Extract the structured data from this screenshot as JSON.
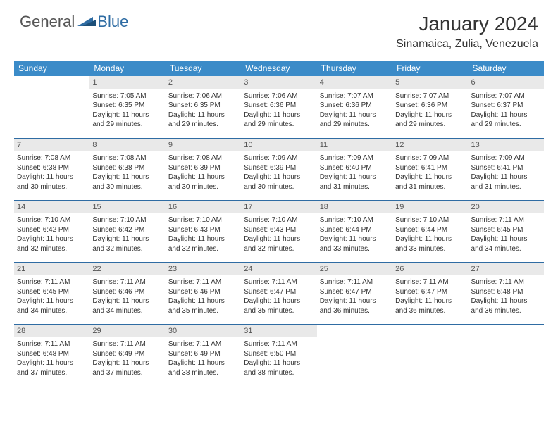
{
  "brand": {
    "general": "General",
    "blue": "Blue"
  },
  "title": "January 2024",
  "location": "Sinamaica, Zulia, Venezuela",
  "colors": {
    "header_bg": "#3b8bc8",
    "header_text": "#ffffff",
    "daynum_bg": "#e9e9e9",
    "row_border": "#2f6ca3",
    "logo_blue": "#2f6ca3",
    "body_text": "#333333"
  },
  "weekdays": [
    "Sunday",
    "Monday",
    "Tuesday",
    "Wednesday",
    "Thursday",
    "Friday",
    "Saturday"
  ],
  "weeks": [
    [
      null,
      {
        "n": "1",
        "sr": "Sunrise: 7:05 AM",
        "ss": "Sunset: 6:35 PM",
        "d1": "Daylight: 11 hours",
        "d2": "and 29 minutes."
      },
      {
        "n": "2",
        "sr": "Sunrise: 7:06 AM",
        "ss": "Sunset: 6:35 PM",
        "d1": "Daylight: 11 hours",
        "d2": "and 29 minutes."
      },
      {
        "n": "3",
        "sr": "Sunrise: 7:06 AM",
        "ss": "Sunset: 6:36 PM",
        "d1": "Daylight: 11 hours",
        "d2": "and 29 minutes."
      },
      {
        "n": "4",
        "sr": "Sunrise: 7:07 AM",
        "ss": "Sunset: 6:36 PM",
        "d1": "Daylight: 11 hours",
        "d2": "and 29 minutes."
      },
      {
        "n": "5",
        "sr": "Sunrise: 7:07 AM",
        "ss": "Sunset: 6:36 PM",
        "d1": "Daylight: 11 hours",
        "d2": "and 29 minutes."
      },
      {
        "n": "6",
        "sr": "Sunrise: 7:07 AM",
        "ss": "Sunset: 6:37 PM",
        "d1": "Daylight: 11 hours",
        "d2": "and 29 minutes."
      }
    ],
    [
      {
        "n": "7",
        "sr": "Sunrise: 7:08 AM",
        "ss": "Sunset: 6:38 PM",
        "d1": "Daylight: 11 hours",
        "d2": "and 30 minutes."
      },
      {
        "n": "8",
        "sr": "Sunrise: 7:08 AM",
        "ss": "Sunset: 6:38 PM",
        "d1": "Daylight: 11 hours",
        "d2": "and 30 minutes."
      },
      {
        "n": "9",
        "sr": "Sunrise: 7:08 AM",
        "ss": "Sunset: 6:39 PM",
        "d1": "Daylight: 11 hours",
        "d2": "and 30 minutes."
      },
      {
        "n": "10",
        "sr": "Sunrise: 7:09 AM",
        "ss": "Sunset: 6:39 PM",
        "d1": "Daylight: 11 hours",
        "d2": "and 30 minutes."
      },
      {
        "n": "11",
        "sr": "Sunrise: 7:09 AM",
        "ss": "Sunset: 6:40 PM",
        "d1": "Daylight: 11 hours",
        "d2": "and 31 minutes."
      },
      {
        "n": "12",
        "sr": "Sunrise: 7:09 AM",
        "ss": "Sunset: 6:41 PM",
        "d1": "Daylight: 11 hours",
        "d2": "and 31 minutes."
      },
      {
        "n": "13",
        "sr": "Sunrise: 7:09 AM",
        "ss": "Sunset: 6:41 PM",
        "d1": "Daylight: 11 hours",
        "d2": "and 31 minutes."
      }
    ],
    [
      {
        "n": "14",
        "sr": "Sunrise: 7:10 AM",
        "ss": "Sunset: 6:42 PM",
        "d1": "Daylight: 11 hours",
        "d2": "and 32 minutes."
      },
      {
        "n": "15",
        "sr": "Sunrise: 7:10 AM",
        "ss": "Sunset: 6:42 PM",
        "d1": "Daylight: 11 hours",
        "d2": "and 32 minutes."
      },
      {
        "n": "16",
        "sr": "Sunrise: 7:10 AM",
        "ss": "Sunset: 6:43 PM",
        "d1": "Daylight: 11 hours",
        "d2": "and 32 minutes."
      },
      {
        "n": "17",
        "sr": "Sunrise: 7:10 AM",
        "ss": "Sunset: 6:43 PM",
        "d1": "Daylight: 11 hours",
        "d2": "and 32 minutes."
      },
      {
        "n": "18",
        "sr": "Sunrise: 7:10 AM",
        "ss": "Sunset: 6:44 PM",
        "d1": "Daylight: 11 hours",
        "d2": "and 33 minutes."
      },
      {
        "n": "19",
        "sr": "Sunrise: 7:10 AM",
        "ss": "Sunset: 6:44 PM",
        "d1": "Daylight: 11 hours",
        "d2": "and 33 minutes."
      },
      {
        "n": "20",
        "sr": "Sunrise: 7:11 AM",
        "ss": "Sunset: 6:45 PM",
        "d1": "Daylight: 11 hours",
        "d2": "and 34 minutes."
      }
    ],
    [
      {
        "n": "21",
        "sr": "Sunrise: 7:11 AM",
        "ss": "Sunset: 6:45 PM",
        "d1": "Daylight: 11 hours",
        "d2": "and 34 minutes."
      },
      {
        "n": "22",
        "sr": "Sunrise: 7:11 AM",
        "ss": "Sunset: 6:46 PM",
        "d1": "Daylight: 11 hours",
        "d2": "and 34 minutes."
      },
      {
        "n": "23",
        "sr": "Sunrise: 7:11 AM",
        "ss": "Sunset: 6:46 PM",
        "d1": "Daylight: 11 hours",
        "d2": "and 35 minutes."
      },
      {
        "n": "24",
        "sr": "Sunrise: 7:11 AM",
        "ss": "Sunset: 6:47 PM",
        "d1": "Daylight: 11 hours",
        "d2": "and 35 minutes."
      },
      {
        "n": "25",
        "sr": "Sunrise: 7:11 AM",
        "ss": "Sunset: 6:47 PM",
        "d1": "Daylight: 11 hours",
        "d2": "and 36 minutes."
      },
      {
        "n": "26",
        "sr": "Sunrise: 7:11 AM",
        "ss": "Sunset: 6:47 PM",
        "d1": "Daylight: 11 hours",
        "d2": "and 36 minutes."
      },
      {
        "n": "27",
        "sr": "Sunrise: 7:11 AM",
        "ss": "Sunset: 6:48 PM",
        "d1": "Daylight: 11 hours",
        "d2": "and 36 minutes."
      }
    ],
    [
      {
        "n": "28",
        "sr": "Sunrise: 7:11 AM",
        "ss": "Sunset: 6:48 PM",
        "d1": "Daylight: 11 hours",
        "d2": "and 37 minutes."
      },
      {
        "n": "29",
        "sr": "Sunrise: 7:11 AM",
        "ss": "Sunset: 6:49 PM",
        "d1": "Daylight: 11 hours",
        "d2": "and 37 minutes."
      },
      {
        "n": "30",
        "sr": "Sunrise: 7:11 AM",
        "ss": "Sunset: 6:49 PM",
        "d1": "Daylight: 11 hours",
        "d2": "and 38 minutes."
      },
      {
        "n": "31",
        "sr": "Sunrise: 7:11 AM",
        "ss": "Sunset: 6:50 PM",
        "d1": "Daylight: 11 hours",
        "d2": "and 38 minutes."
      },
      null,
      null,
      null
    ]
  ]
}
